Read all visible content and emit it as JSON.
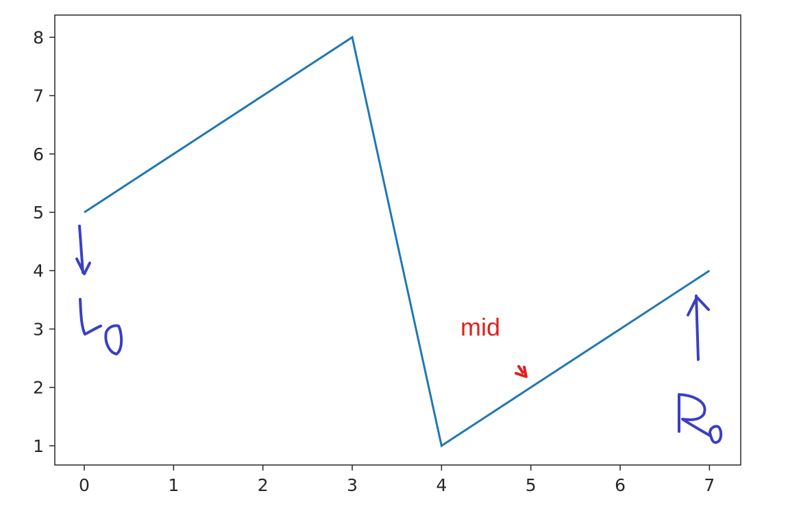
{
  "chart_data": {
    "type": "line",
    "title": "",
    "xlabel": "",
    "ylabel": "",
    "xlim": [
      -0.33,
      7.35
    ],
    "ylim": [
      0.67,
      8.38
    ],
    "xticks": [
      0,
      1,
      2,
      3,
      4,
      5,
      6,
      7
    ],
    "yticks": [
      1,
      2,
      3,
      4,
      5,
      6,
      7,
      8
    ],
    "grid": false,
    "series": [
      {
        "x": [
          0,
          1,
          2,
          3,
          4,
          5,
          6,
          7
        ],
        "y": [
          5,
          6,
          7,
          8,
          1,
          2,
          3,
          4
        ],
        "color": "#1f77b4"
      }
    ],
    "annotations": [
      {
        "text": "mid",
        "x": 4.9,
        "y": 2.1,
        "color": "#e02020",
        "arrow": true
      },
      {
        "text": "L0",
        "x": 0.0,
        "y": 4.8,
        "color": "#3a3fc4",
        "style": "handwritten",
        "arrow": "down"
      },
      {
        "text": "R0",
        "x": 6.85,
        "y": 3.6,
        "color": "#3a3fc4",
        "style": "handwritten",
        "arrow": "up"
      }
    ]
  }
}
